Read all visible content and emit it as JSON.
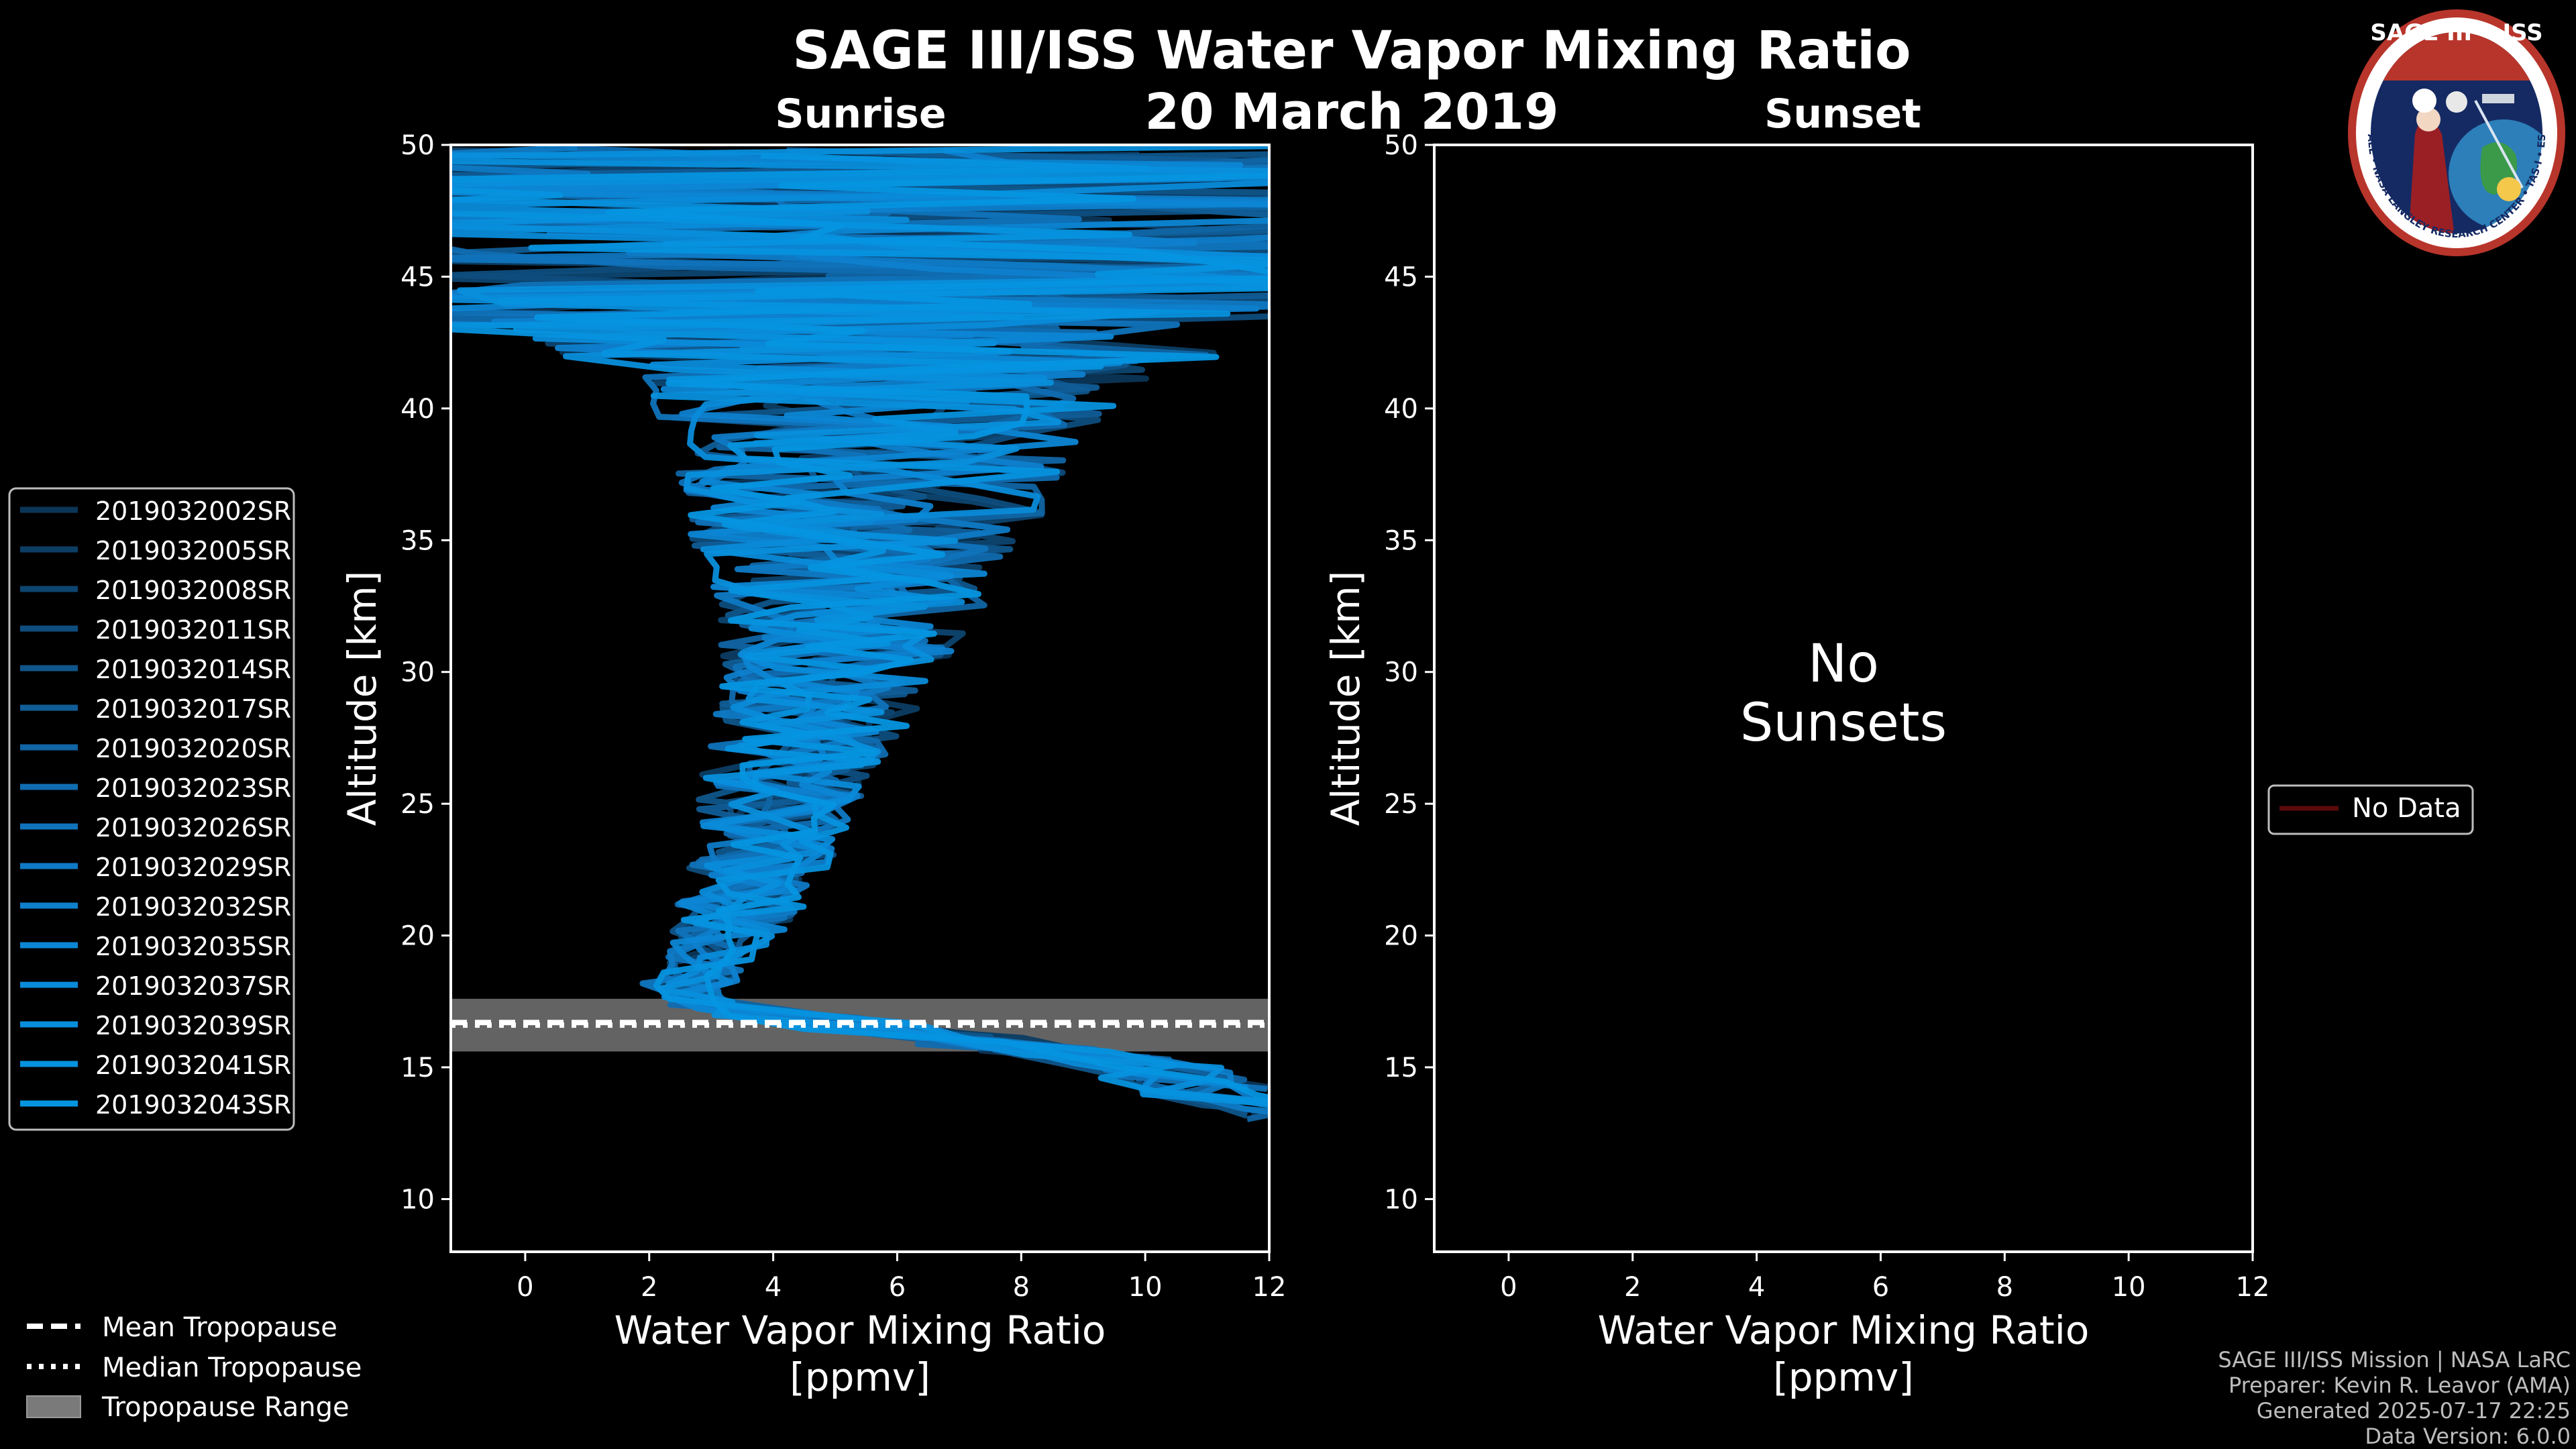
{
  "chart_data": {
    "type": "line",
    "title": "SAGE III/ISS Water Vapor Mixing Ratio",
    "date": "20 March 2019",
    "logo": {
      "top_text": "SAGE III • ISS",
      "ring_text": "BALL • NASA LANGLEY RESEARCH CENTER • TAS-I • ESA"
    },
    "footer": [
      "SAGE III/ISS Mission | NASA LaRC",
      "Preparer: Kevin R. Leavor (AMA)",
      "Generated 2025-07-17 22:25",
      "Data Version: 6.0.0"
    ],
    "tropopause_legend": {
      "mean": "Mean Tropopause",
      "median": "Median Tropopause",
      "range": "Tropopause Range"
    },
    "panels": [
      {
        "id": "sunrise",
        "subtitle": "Sunrise",
        "xlabel": "Water Vapor Mixing Ratio\n[ppmv]",
        "ylabel": "Altitude [km]",
        "xlim": [
          -1.2,
          12
        ],
        "ylim": [
          8,
          50
        ],
        "xticks": [
          0,
          2,
          4,
          6,
          8,
          10,
          12
        ],
        "yticks": [
          10,
          15,
          20,
          25,
          30,
          35,
          40,
          45,
          50
        ],
        "tropopause": {
          "mean": 16.7,
          "median": 16.6,
          "range": [
            15.6,
            17.6
          ]
        },
        "series": [
          {
            "name": "2019032002SR",
            "color": "#0b3556"
          },
          {
            "name": "2019032005SR",
            "color": "#0c3d63"
          },
          {
            "name": "2019032008SR",
            "color": "#0d4570"
          },
          {
            "name": "2019032011SR",
            "color": "#0e4d7d"
          },
          {
            "name": "2019032014SR",
            "color": "#0f558a"
          },
          {
            "name": "2019032017SR",
            "color": "#105d97"
          },
          {
            "name": "2019032020SR",
            "color": "#1065a4"
          },
          {
            "name": "2019032023SR",
            "color": "#106cb0"
          },
          {
            "name": "2019032026SR",
            "color": "#1073bb"
          },
          {
            "name": "2019032029SR",
            "color": "#0f7ac5"
          },
          {
            "name": "2019032032SR",
            "color": "#0e80cd"
          },
          {
            "name": "2019032035SR",
            "color": "#0c86d4"
          },
          {
            "name": "2019032037SR",
            "color": "#0a8bd9"
          },
          {
            "name": "2019032039SR",
            "color": "#088fdc"
          },
          {
            "name": "2019032041SR",
            "color": "#0692de"
          },
          {
            "name": "2019032043SR",
            "color": "#0595e0"
          }
        ]
      },
      {
        "id": "sunset",
        "subtitle": "Sunset",
        "xlabel": "Water Vapor Mixing Ratio\n[ppmv]",
        "ylabel": "Altitude [km]",
        "xlim": [
          -1.2,
          12
        ],
        "ylim": [
          8,
          50
        ],
        "xticks": [
          0,
          2,
          4,
          6,
          8,
          10,
          12
        ],
        "yticks": [
          10,
          15,
          20,
          25,
          30,
          35,
          40,
          45,
          50
        ],
        "annotation": "No\nSunsets",
        "series": [
          {
            "name": "No Data",
            "color": "#5a0a0a"
          }
        ]
      }
    ]
  }
}
